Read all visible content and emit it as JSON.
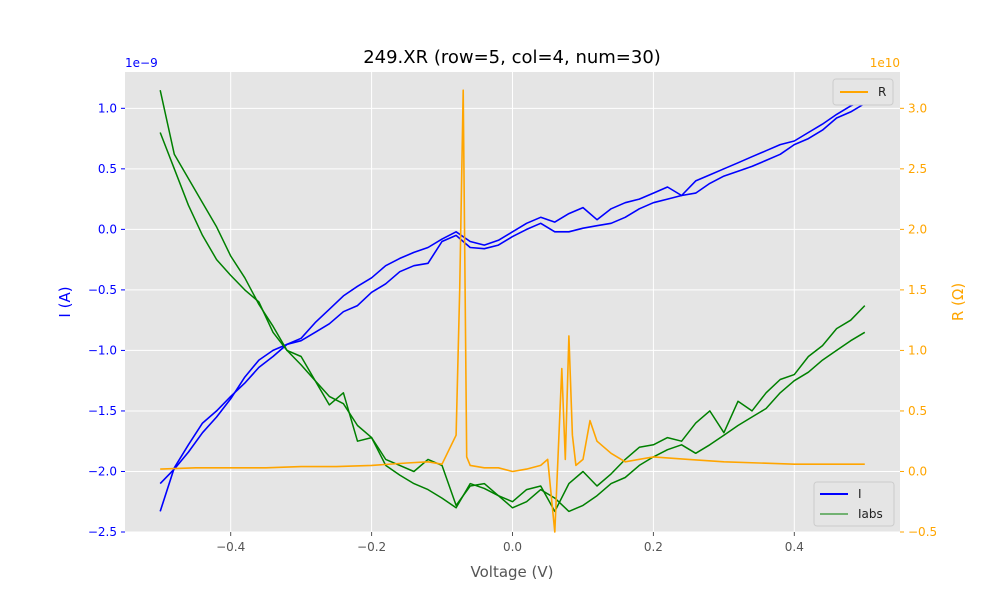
{
  "chart_data": {
    "type": "line",
    "title": "249.XR (row=5, col=4, num=30)",
    "xlabel": "Voltage (V)",
    "ylabel_left": "I (A)",
    "ylabel_right": "R (Ω)",
    "left_offset_text": "1e−9",
    "right_offset_text": "1e10",
    "xlim": [
      -0.55,
      0.55
    ],
    "ylim_left": [
      -2.5,
      1.3
    ],
    "ylim_right": [
      -0.5,
      3.3
    ],
    "x_ticks": [
      -0.4,
      -0.2,
      0.0,
      0.2,
      0.4
    ],
    "x_tick_labels": [
      "−0.4",
      "−0.2",
      "0.0",
      "0.2",
      "0.4"
    ],
    "y_left_ticks": [
      1.0,
      0.5,
      0.0,
      -0.5,
      -1.0,
      -1.5,
      -2.0,
      -2.5
    ],
    "y_left_tick_labels": [
      "1.0",
      "0.5",
      "0.0",
      "−0.5",
      "−1.0",
      "−1.5",
      "−2.0",
      "−2.5"
    ],
    "y_right_ticks": [
      3.0,
      2.5,
      2.0,
      1.5,
      1.0,
      0.5,
      0.0,
      -0.5
    ],
    "y_right_tick_labels": [
      "3.0",
      "2.5",
      "2.0",
      "1.5",
      "1.0",
      "0.5",
      "0.0",
      "−0.5"
    ],
    "grid": true,
    "legend_right": {
      "placement": "top-right",
      "entries": [
        "R"
      ]
    },
    "legend_left": {
      "placement": "lower-right",
      "entries": [
        "I",
        "Iabs"
      ]
    },
    "series": [
      {
        "name": "I",
        "axis": "left",
        "color": "#0000ff",
        "x": [
          -0.5,
          -0.48,
          -0.46,
          -0.44,
          -0.42,
          -0.4,
          -0.38,
          -0.36,
          -0.34,
          -0.32,
          -0.3,
          -0.28,
          -0.26,
          -0.24,
          -0.22,
          -0.2,
          -0.18,
          -0.16,
          -0.14,
          -0.12,
          -0.1,
          -0.08,
          -0.06,
          -0.04,
          -0.02,
          0.0,
          0.02,
          0.04,
          0.06,
          0.08,
          0.1,
          0.12,
          0.14,
          0.16,
          0.18,
          0.2,
          0.22,
          0.24,
          0.26,
          0.28,
          0.3,
          0.32,
          0.34,
          0.36,
          0.38,
          0.4,
          0.42,
          0.44,
          0.46,
          0.48,
          0.5
        ],
        "y": [
          -2.33,
          -1.97,
          -1.78,
          -1.6,
          -1.5,
          -1.38,
          -1.27,
          -1.14,
          -1.05,
          -0.95,
          -0.9,
          -0.77,
          -0.66,
          -0.55,
          -0.47,
          -0.4,
          -0.3,
          -0.24,
          -0.19,
          -0.15,
          -0.08,
          -0.02,
          -0.1,
          -0.13,
          -0.09,
          -0.02,
          0.05,
          0.1,
          0.06,
          0.13,
          0.18,
          0.08,
          0.17,
          0.22,
          0.25,
          0.3,
          0.35,
          0.28,
          0.4,
          0.45,
          0.5,
          0.55,
          0.6,
          0.65,
          0.7,
          0.73,
          0.8,
          0.87,
          0.95,
          1.02,
          1.07
        ]
      },
      {
        "name": "I",
        "axis": "left",
        "color": "#0000ff",
        "x": [
          0.5,
          0.48,
          0.46,
          0.44,
          0.42,
          0.4,
          0.38,
          0.36,
          0.34,
          0.32,
          0.3,
          0.28,
          0.26,
          0.24,
          0.22,
          0.2,
          0.18,
          0.16,
          0.14,
          0.12,
          0.1,
          0.08,
          0.06,
          0.04,
          0.02,
          0.0,
          -0.02,
          -0.04,
          -0.06,
          -0.08,
          -0.1,
          -0.12,
          -0.14,
          -0.16,
          -0.18,
          -0.2,
          -0.22,
          -0.24,
          -0.26,
          -0.28,
          -0.3,
          -0.32,
          -0.34,
          -0.36,
          -0.38,
          -0.4,
          -0.42,
          -0.44,
          -0.46,
          -0.48,
          -0.5
        ],
        "y": [
          1.04,
          0.97,
          0.92,
          0.82,
          0.75,
          0.7,
          0.62,
          0.57,
          0.52,
          0.48,
          0.44,
          0.38,
          0.3,
          0.28,
          0.25,
          0.22,
          0.17,
          0.1,
          0.05,
          0.03,
          0.01,
          -0.02,
          -0.02,
          0.05,
          0.0,
          -0.06,
          -0.13,
          -0.16,
          -0.15,
          -0.05,
          -0.1,
          -0.28,
          -0.3,
          -0.35,
          -0.45,
          -0.52,
          -0.63,
          -0.68,
          -0.78,
          -0.85,
          -0.92,
          -0.95,
          -1.0,
          -1.08,
          -1.22,
          -1.4,
          -1.55,
          -1.68,
          -1.84,
          -1.98,
          -2.1
        ]
      },
      {
        "name": "Iabs",
        "axis": "left",
        "color": "#008000",
        "x": [
          -0.5,
          -0.48,
          -0.46,
          -0.44,
          -0.42,
          -0.4,
          -0.38,
          -0.36,
          -0.34,
          -0.32,
          -0.3,
          -0.28,
          -0.26,
          -0.24,
          -0.22,
          -0.2,
          -0.18,
          -0.16,
          -0.14,
          -0.12,
          -0.1,
          -0.08,
          -0.06,
          -0.04,
          -0.02,
          0.0,
          0.02,
          0.04,
          0.06,
          0.08,
          0.1,
          0.12,
          0.14,
          0.16,
          0.18,
          0.2,
          0.22,
          0.24,
          0.26,
          0.28,
          0.3,
          0.32,
          0.34,
          0.36,
          0.38,
          0.4,
          0.42,
          0.44,
          0.46,
          0.48,
          0.5
        ],
        "y": [
          1.15,
          0.62,
          0.42,
          0.22,
          0.02,
          -0.22,
          -0.4,
          -0.62,
          -0.8,
          -1.0,
          -1.05,
          -1.25,
          -1.45,
          -1.35,
          -1.75,
          -1.72,
          -1.95,
          -2.03,
          -2.1,
          -2.15,
          -2.22,
          -2.3,
          -2.1,
          -2.14,
          -2.2,
          -2.25,
          -2.15,
          -2.12,
          -2.33,
          -2.1,
          -2.0,
          -2.12,
          -2.02,
          -1.9,
          -1.8,
          -1.78,
          -1.72,
          -1.75,
          -1.6,
          -1.5,
          -1.68,
          -1.42,
          -1.5,
          -1.35,
          -1.24,
          -1.2,
          -1.05,
          -0.96,
          -0.82,
          -0.75,
          -0.63
        ]
      },
      {
        "name": "Iabs",
        "axis": "left",
        "color": "#008000",
        "x": [
          0.5,
          0.48,
          0.46,
          0.44,
          0.42,
          0.4,
          0.38,
          0.36,
          0.34,
          0.32,
          0.3,
          0.28,
          0.26,
          0.24,
          0.22,
          0.2,
          0.18,
          0.16,
          0.14,
          0.12,
          0.1,
          0.08,
          0.06,
          0.04,
          0.02,
          0.0,
          -0.02,
          -0.04,
          -0.06,
          -0.08,
          -0.1,
          -0.12,
          -0.14,
          -0.16,
          -0.18,
          -0.2,
          -0.22,
          -0.24,
          -0.26,
          -0.28,
          -0.3,
          -0.32,
          -0.34,
          -0.36,
          -0.38,
          -0.4,
          -0.42,
          -0.44,
          -0.46,
          -0.48,
          -0.5
        ],
        "y": [
          -0.85,
          -0.92,
          -1.0,
          -1.08,
          -1.18,
          -1.25,
          -1.35,
          -1.48,
          -1.55,
          -1.62,
          -1.7,
          -1.78,
          -1.85,
          -1.78,
          -1.82,
          -1.88,
          -1.95,
          -2.05,
          -2.1,
          -2.2,
          -2.28,
          -2.33,
          -2.22,
          -2.15,
          -2.25,
          -2.3,
          -2.2,
          -2.1,
          -2.12,
          -2.28,
          -1.95,
          -1.9,
          -2.0,
          -1.95,
          -1.9,
          -1.72,
          -1.62,
          -1.44,
          -1.38,
          -1.25,
          -1.12,
          -1.0,
          -0.85,
          -0.6,
          -0.5,
          -0.38,
          -0.25,
          -0.05,
          0.2,
          0.5,
          0.8
        ]
      },
      {
        "name": "R",
        "axis": "right",
        "color": "#ffa500",
        "x": [
          -0.5,
          -0.45,
          -0.4,
          -0.35,
          -0.3,
          -0.25,
          -0.2,
          -0.15,
          -0.12,
          -0.1,
          -0.08,
          -0.075,
          -0.07,
          -0.065,
          -0.06,
          -0.04,
          -0.02,
          0.0,
          0.02,
          0.04,
          0.05,
          0.06,
          0.07,
          0.075,
          0.08,
          0.085,
          0.09,
          0.1,
          0.11,
          0.12,
          0.14,
          0.16,
          0.2,
          0.25,
          0.3,
          0.35,
          0.4,
          0.45,
          0.5
        ],
        "y": [
          0.02,
          0.03,
          0.03,
          0.03,
          0.04,
          0.04,
          0.05,
          0.07,
          0.08,
          0.06,
          0.3,
          1.5,
          3.15,
          0.12,
          0.05,
          0.03,
          0.03,
          0.0,
          0.02,
          0.05,
          0.1,
          -0.5,
          0.85,
          0.1,
          1.12,
          0.3,
          0.05,
          0.1,
          0.42,
          0.25,
          0.15,
          0.08,
          0.12,
          0.1,
          0.08,
          0.07,
          0.06,
          0.06,
          0.06
        ]
      }
    ]
  }
}
